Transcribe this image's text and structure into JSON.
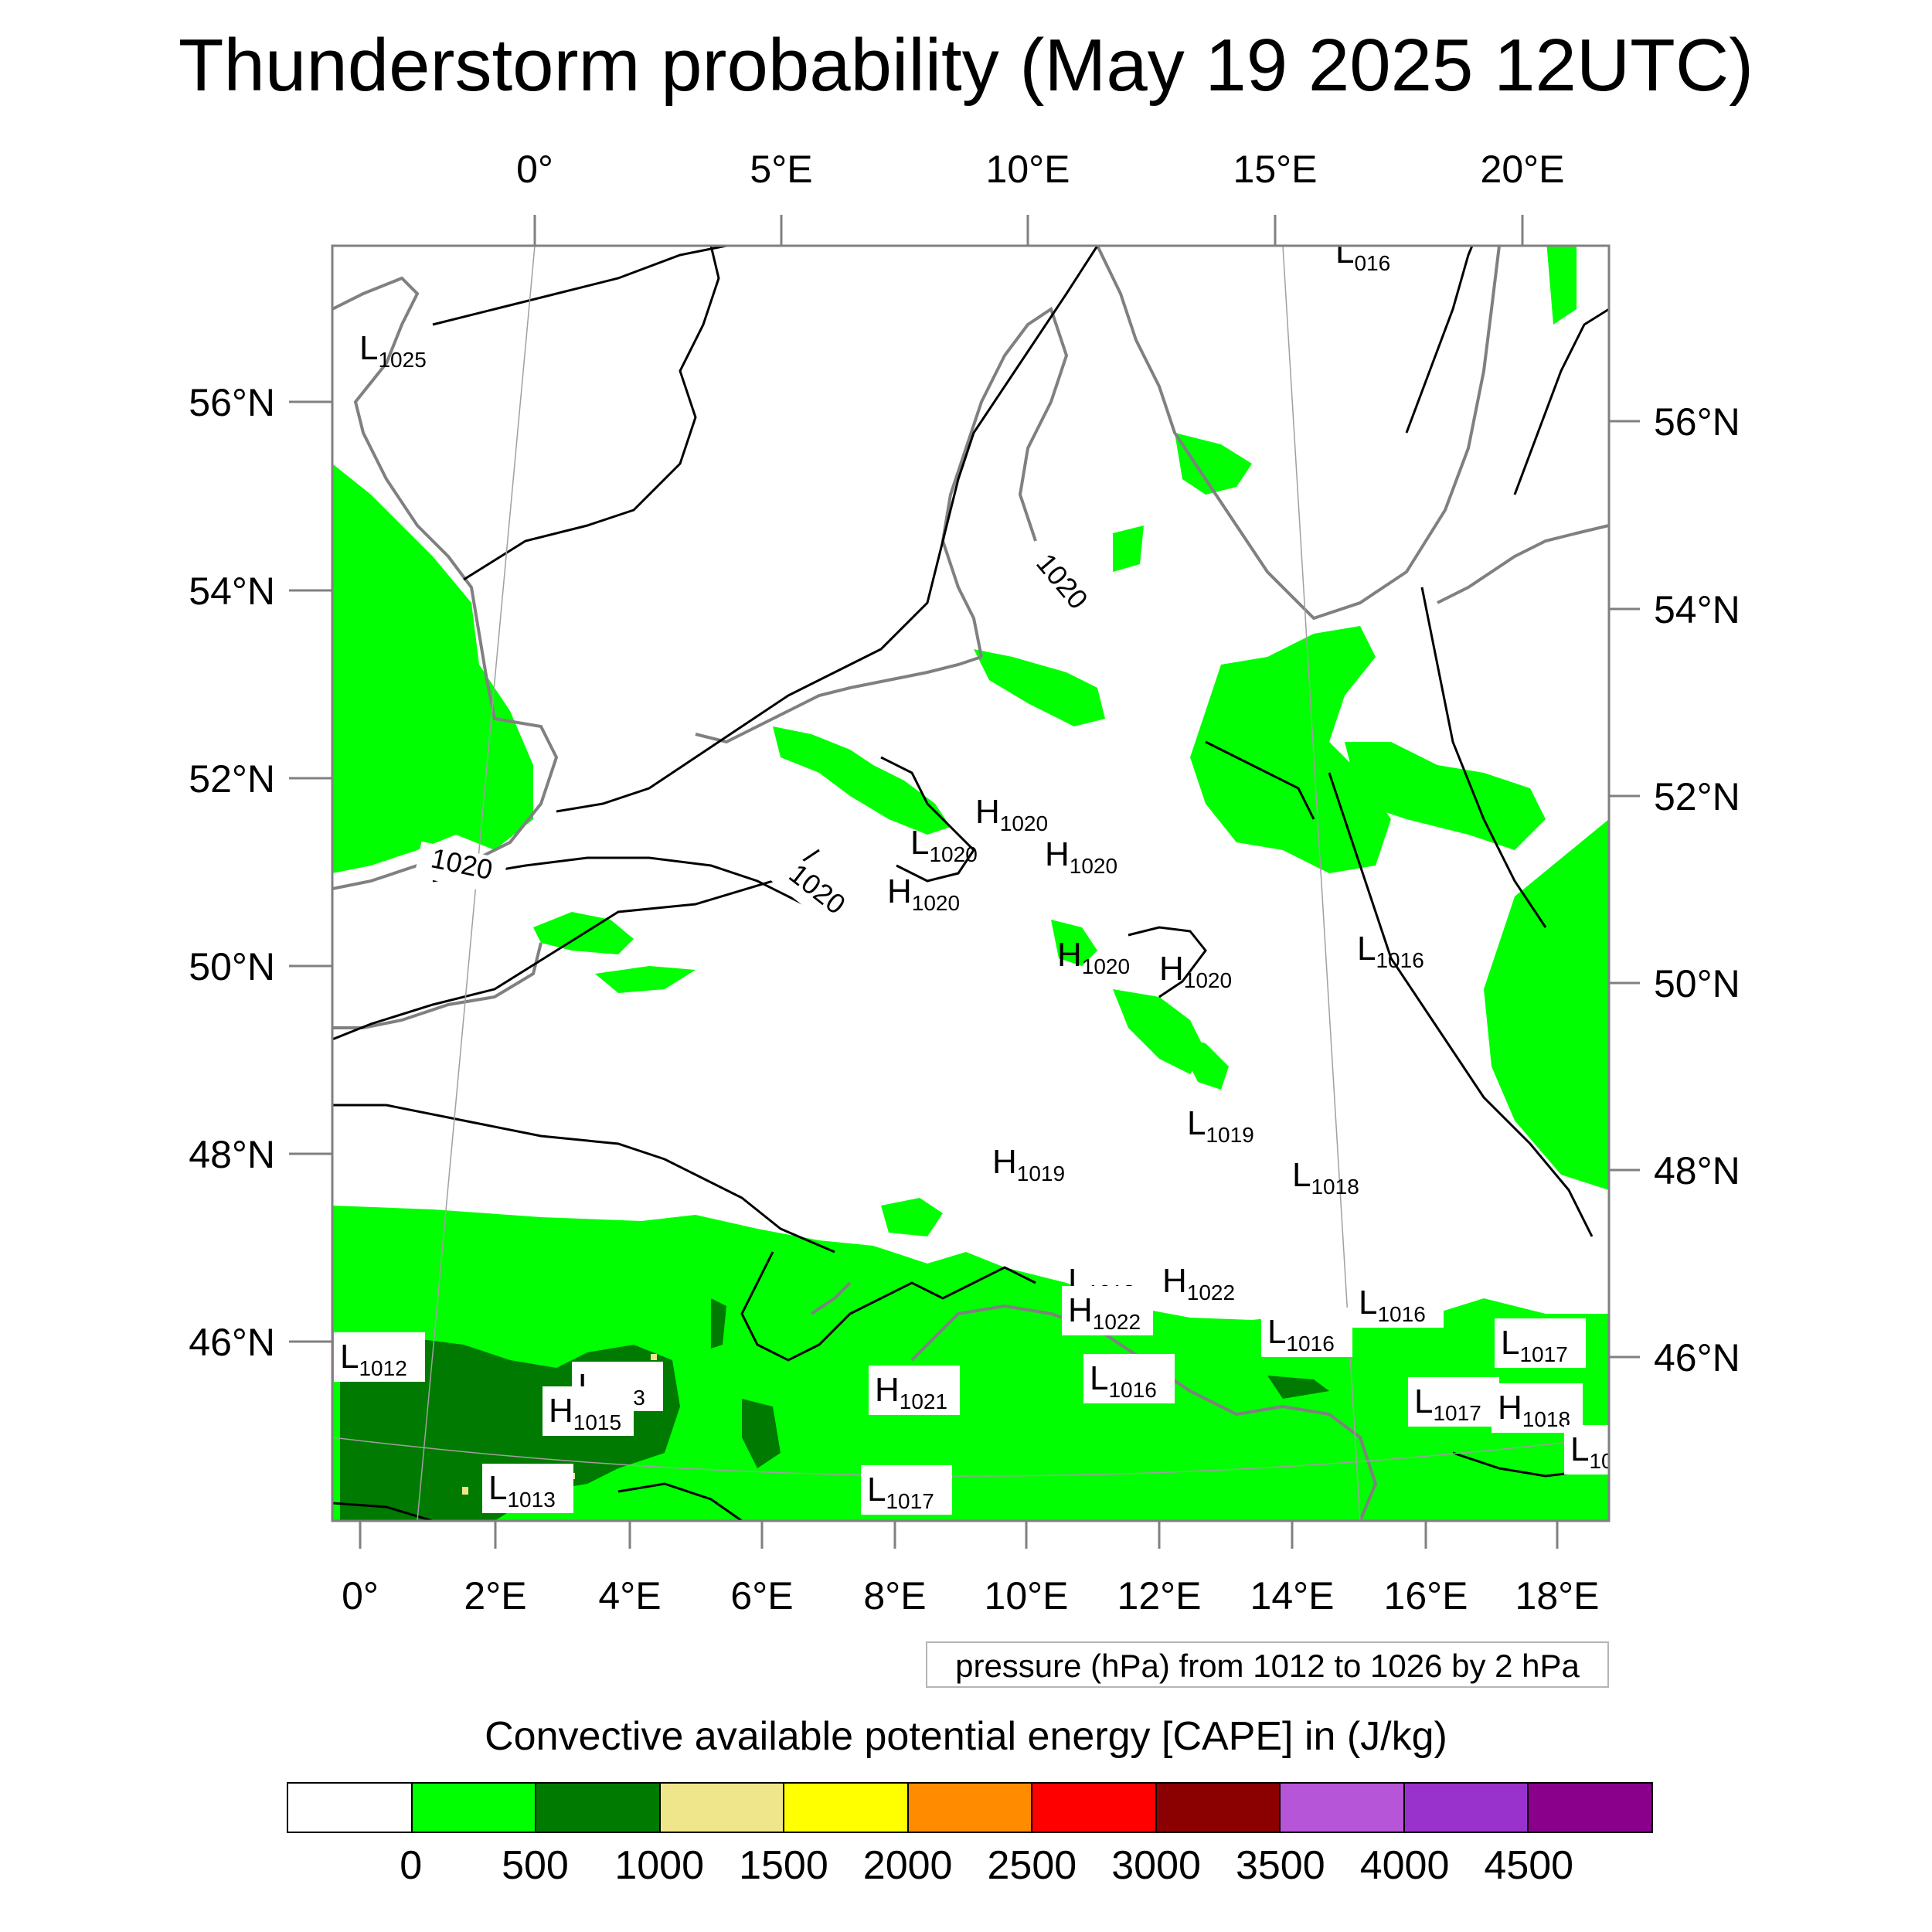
{
  "title": "Thunderstorm probability (May 19 2025 12UTC)",
  "top_lon_labels": [
    "0°",
    "5°E",
    "10°E",
    "15°E",
    "20°E"
  ],
  "bottom_lon_labels": [
    "0°",
    "2°E",
    "4°E",
    "6°E",
    "8°E",
    "10°E",
    "12°E",
    "14°E",
    "16°E",
    "18°E"
  ],
  "left_lat_labels": [
    "56°N",
    "54°N",
    "52°N",
    "50°N",
    "48°N",
    "46°N"
  ],
  "right_lat_labels": [
    "56°N",
    "54°N",
    "52°N",
    "50°N",
    "48°N",
    "46°N"
  ],
  "isobar_labels": [
    "1020",
    "1020",
    "1020"
  ],
  "pressure_centers": [
    {
      "t": "L",
      "v": "1025"
    },
    {
      "t": "L",
      "v": "016"
    },
    {
      "t": "H",
      "v": "1020"
    },
    {
      "t": "L",
      "v": "1020"
    },
    {
      "t": "H",
      "v": "1020"
    },
    {
      "t": "H",
      "v": "1020"
    },
    {
      "t": "H",
      "v": "1020"
    },
    {
      "t": "H",
      "v": "1020"
    },
    {
      "t": "L",
      "v": "1016"
    },
    {
      "t": "L",
      "v": "1019"
    },
    {
      "t": "H",
      "v": "1019"
    },
    {
      "t": "L",
      "v": "1018"
    },
    {
      "t": "L",
      "v": "1018"
    },
    {
      "t": "H",
      "v": "1022"
    },
    {
      "t": "H",
      "v": "1022"
    },
    {
      "t": "L",
      "v": "1016"
    },
    {
      "t": "L",
      "v": "1016"
    },
    {
      "t": "L",
      "v": "1017"
    },
    {
      "t": "L",
      "v": "1012"
    },
    {
      "t": "L",
      "v": "1013"
    },
    {
      "t": "H",
      "v": "1015"
    },
    {
      "t": "H",
      "v": "1021"
    },
    {
      "t": "L",
      "v": "1016"
    },
    {
      "t": "L",
      "v": "1017"
    },
    {
      "t": "H",
      "v": "1018"
    },
    {
      "t": "L",
      "v": "1013"
    },
    {
      "t": "L",
      "v": "1017"
    },
    {
      "t": "L",
      "v": "10"
    }
  ],
  "contour_info": "pressure (hPa) from 1012 to 1026 by 2 hPa",
  "colorbar": {
    "title": "Convective available potential energy [CAPE] in (J/kg)",
    "colors": [
      "#ffffff",
      "#00ff00",
      "#007a00",
      "#efe68c",
      "#ffff00",
      "#ff8c00",
      "#ff0000",
      "#8b0000",
      "#b655d7",
      "#9932cc",
      "#8b008b"
    ],
    "ticks": [
      "0",
      "500",
      "1000",
      "1500",
      "2000",
      "2500",
      "3000",
      "3500",
      "4000",
      "4500"
    ]
  },
  "colors": {
    "cape_light": "#00ff00",
    "cape_dark": "#007a00",
    "coast": "#808080",
    "isobar": "#000000"
  }
}
